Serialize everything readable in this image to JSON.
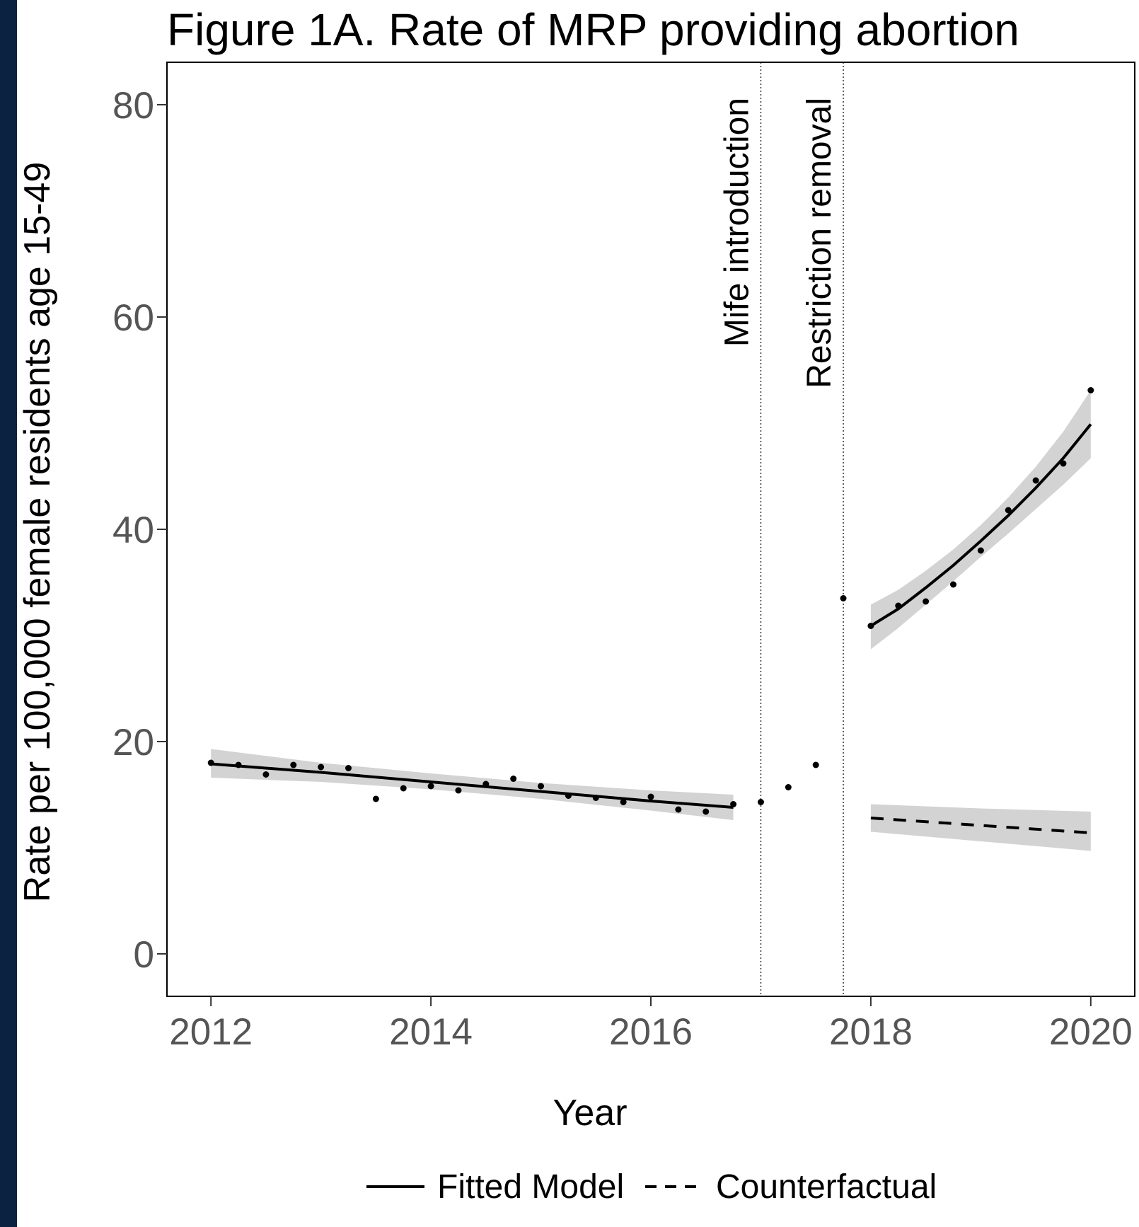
{
  "chart_data": {
    "type": "line",
    "title": "Figure 1A. Rate of MRP providing abortion",
    "xlabel": "Year",
    "ylabel": "Rate per 100,000 female residents age 15-49",
    "xlim": [
      2011.6,
      2020.4
    ],
    "ylim": [
      -4,
      84
    ],
    "x_ticks": [
      2012,
      2014,
      2016,
      2018,
      2020
    ],
    "y_ticks": [
      0,
      20,
      40,
      60,
      80
    ],
    "grid": false,
    "legend_position": "bottom",
    "colors": {
      "line": "#000000",
      "ribbon": "#d3d3d3",
      "background": "#ffffff",
      "frame": "#0b2240"
    },
    "events": [
      {
        "x": 2017.0,
        "label": "Mife introduction"
      },
      {
        "x": 2017.75,
        "label": "Restriction removal"
      }
    ],
    "observed_points": {
      "x": [
        2012.0,
        2012.25,
        2012.5,
        2012.75,
        2013.0,
        2013.25,
        2013.5,
        2013.75,
        2014.0,
        2014.25,
        2014.5,
        2014.75,
        2015.0,
        2015.25,
        2015.5,
        2015.75,
        2016.0,
        2016.25,
        2016.5,
        2016.75,
        2017.0,
        2017.25,
        2017.5,
        2017.75,
        2018.0,
        2018.25,
        2018.5,
        2018.75,
        2019.0,
        2019.25,
        2019.5,
        2019.75,
        2020.0
      ],
      "y": [
        18.0,
        17.8,
        16.9,
        17.8,
        17.6,
        17.5,
        14.6,
        15.6,
        15.8,
        15.4,
        16.0,
        16.5,
        15.8,
        14.9,
        14.7,
        14.3,
        14.8,
        13.6,
        13.4,
        14.1,
        14.3,
        15.7,
        17.8,
        33.5,
        30.9,
        32.8,
        33.2,
        34.8,
        38.0,
        41.8,
        44.6,
        46.2,
        53.1
      ]
    },
    "series": [
      {
        "name": "Fitted Model",
        "style": "solid",
        "segments": [
          {
            "x": [
              2012.0,
              2013.0,
              2014.0,
              2015.0,
              2016.0,
              2016.75
            ],
            "y": [
              17.9,
              17.1,
              16.2,
              15.3,
              14.4,
              13.8
            ],
            "lower": [
              16.6,
              16.2,
              15.5,
              14.6,
              13.5,
              12.6
            ],
            "upper": [
              19.3,
              18.0,
              17.0,
              16.1,
              15.4,
              15.0
            ]
          },
          {
            "x": [
              2018.0,
              2018.25,
              2018.5,
              2018.75,
              2019.0,
              2019.25,
              2019.5,
              2019.75,
              2020.0
            ],
            "y": [
              30.9,
              32.5,
              34.5,
              36.6,
              38.9,
              41.3,
              43.9,
              46.7,
              49.9
            ],
            "lower": [
              28.7,
              30.7,
              32.9,
              35.1,
              37.4,
              39.6,
              41.9,
              44.2,
              46.7
            ],
            "upper": [
              32.9,
              34.3,
              36.1,
              38.1,
              40.4,
              43.0,
              45.9,
              49.2,
              53.1
            ]
          }
        ]
      },
      {
        "name": "Counterfactual",
        "style": "dashed",
        "segments": [
          {
            "x": [
              2018.0,
              2019.0,
              2020.0
            ],
            "y": [
              12.8,
              12.1,
              11.4
            ],
            "lower": [
              11.5,
              10.6,
              9.7
            ],
            "upper": [
              14.1,
              13.7,
              13.4
            ]
          }
        ]
      }
    ]
  }
}
